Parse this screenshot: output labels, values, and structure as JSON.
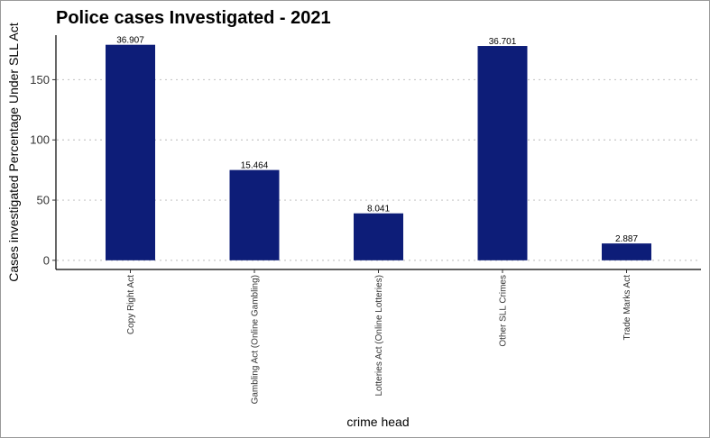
{
  "chart_data": {
    "type": "bar",
    "title": "Police cases Investigated - 2021",
    "xlabel": "crime head",
    "ylabel": "Cases investigated Percentage Under SLL Act",
    "categories": [
      "Copy Right Act",
      "Gambling Act (Online Gambling)",
      "Lotteries Act (Online Lotteries)",
      "Other SLL Crimes",
      "Trade Marks Act"
    ],
    "values": [
      179,
      75,
      39,
      178,
      14
    ],
    "data_labels": [
      "36.907",
      "15.464",
      "8.041",
      "36.701",
      "2.887"
    ],
    "ylim": [
      -7.6,
      187
    ],
    "yticks": [
      0,
      50,
      100,
      150
    ],
    "ytick_labels": [
      "0",
      "50",
      "100",
      "150"
    ],
    "grid": "horizontal dotted",
    "legend": "none",
    "colors": {
      "bar": "#0d1d78"
    }
  }
}
